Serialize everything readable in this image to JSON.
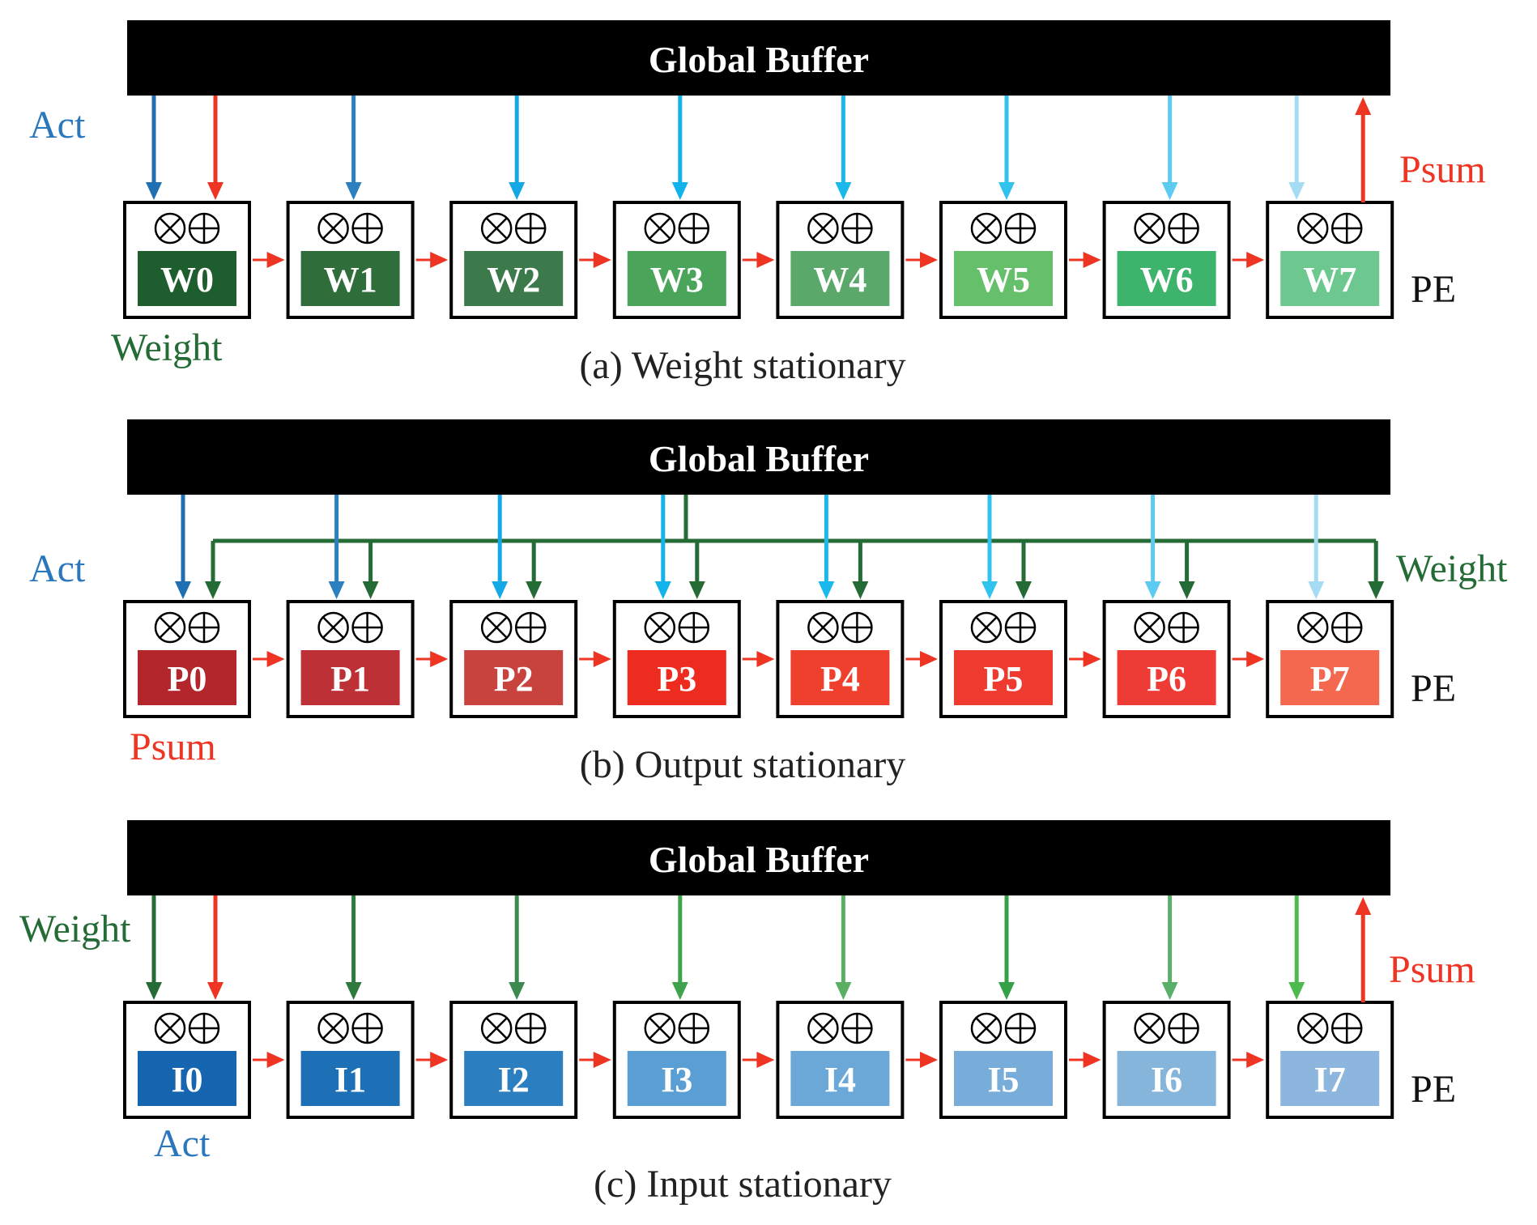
{
  "colors": {
    "red": "#ee3524",
    "dark_green": "#246b35",
    "blue": "#2a77bd",
    "black": "#000000"
  },
  "panels": [
    {
      "id": "a",
      "buffer_label": "Global Buffer",
      "caption": "(a) Weight stationary",
      "pe_label": "PE",
      "labels": {
        "act": {
          "text": "Act",
          "color": "#2a77bd"
        },
        "psum": {
          "text": "Psum",
          "color": "#ee3524"
        },
        "weight": {
          "text": "Weight",
          "color": "#246b35"
        }
      },
      "pes": [
        {
          "label": "W0",
          "color": "#1e5e2e"
        },
        {
          "label": "W1",
          "color": "#2f6e3b"
        },
        {
          "label": "W2",
          "color": "#3c7a4b"
        },
        {
          "label": "W3",
          "color": "#4aa55b"
        },
        {
          "label": "W4",
          "color": "#5aa96a"
        },
        {
          "label": "W5",
          "color": "#66bf6a"
        },
        {
          "label": "W6",
          "color": "#3eb36b"
        },
        {
          "label": "W7",
          "color": "#6cc88f"
        }
      ],
      "act_arrow_colors": [
        "#1f6fb2",
        "#2d80c0",
        "#14a9e4",
        "#12b2ea",
        "#1bb8ec",
        "#32c2ee",
        "#5dcbef",
        "#a5dcf3"
      ]
    },
    {
      "id": "b",
      "buffer_label": "Global Buffer",
      "caption": "(b) Output stationary",
      "pe_label": "PE",
      "labels": {
        "act": {
          "text": "Act",
          "color": "#2a77bd"
        },
        "psum": {
          "text": "Psum",
          "color": "#ee3524"
        },
        "weight": {
          "text": "Weight",
          "color": "#246b35"
        }
      },
      "pes": [
        {
          "label": "P0",
          "color": "#b2262c"
        },
        {
          "label": "P1",
          "color": "#bd3136"
        },
        {
          "label": "P2",
          "color": "#c8433e"
        },
        {
          "label": "P3",
          "color": "#ee2b1f"
        },
        {
          "label": "P4",
          "color": "#ef3f2d"
        },
        {
          "label": "P5",
          "color": "#ef3a30"
        },
        {
          "label": "P6",
          "color": "#ee3b36"
        },
        {
          "label": "P7",
          "color": "#f4684f"
        }
      ],
      "act_arrow_colors": [
        "#1f6fb2",
        "#2d80c0",
        "#14a9e4",
        "#12b2ea",
        "#1bb8ec",
        "#32c2ee",
        "#5dcbef",
        "#a5dcf3"
      ]
    },
    {
      "id": "c",
      "buffer_label": "Global Buffer",
      "caption": "(c) Input stationary",
      "pe_label": "PE",
      "labels": {
        "act": {
          "text": "Act",
          "color": "#2a77bd"
        },
        "psum": {
          "text": "Psum",
          "color": "#ee3524"
        },
        "weight": {
          "text": "Weight",
          "color": "#246b35"
        }
      },
      "pes": [
        {
          "label": "I0",
          "color": "#1565b0"
        },
        {
          "label": "I1",
          "color": "#1d6fb6"
        },
        {
          "label": "I2",
          "color": "#2b7fc0"
        },
        {
          "label": "I3",
          "color": "#5a9fd4"
        },
        {
          "label": "I4",
          "color": "#6ba8d8"
        },
        {
          "label": "I5",
          "color": "#78add9"
        },
        {
          "label": "I6",
          "color": "#86b5dc"
        },
        {
          "label": "I7",
          "color": "#8cb6dd"
        }
      ],
      "weight_arrow_colors": [
        "#246b35",
        "#2e7a3e",
        "#3d8a50",
        "#3ea34c",
        "#5aaf62",
        "#34a048",
        "#5ab06a",
        "#4cba4c"
      ]
    }
  ]
}
